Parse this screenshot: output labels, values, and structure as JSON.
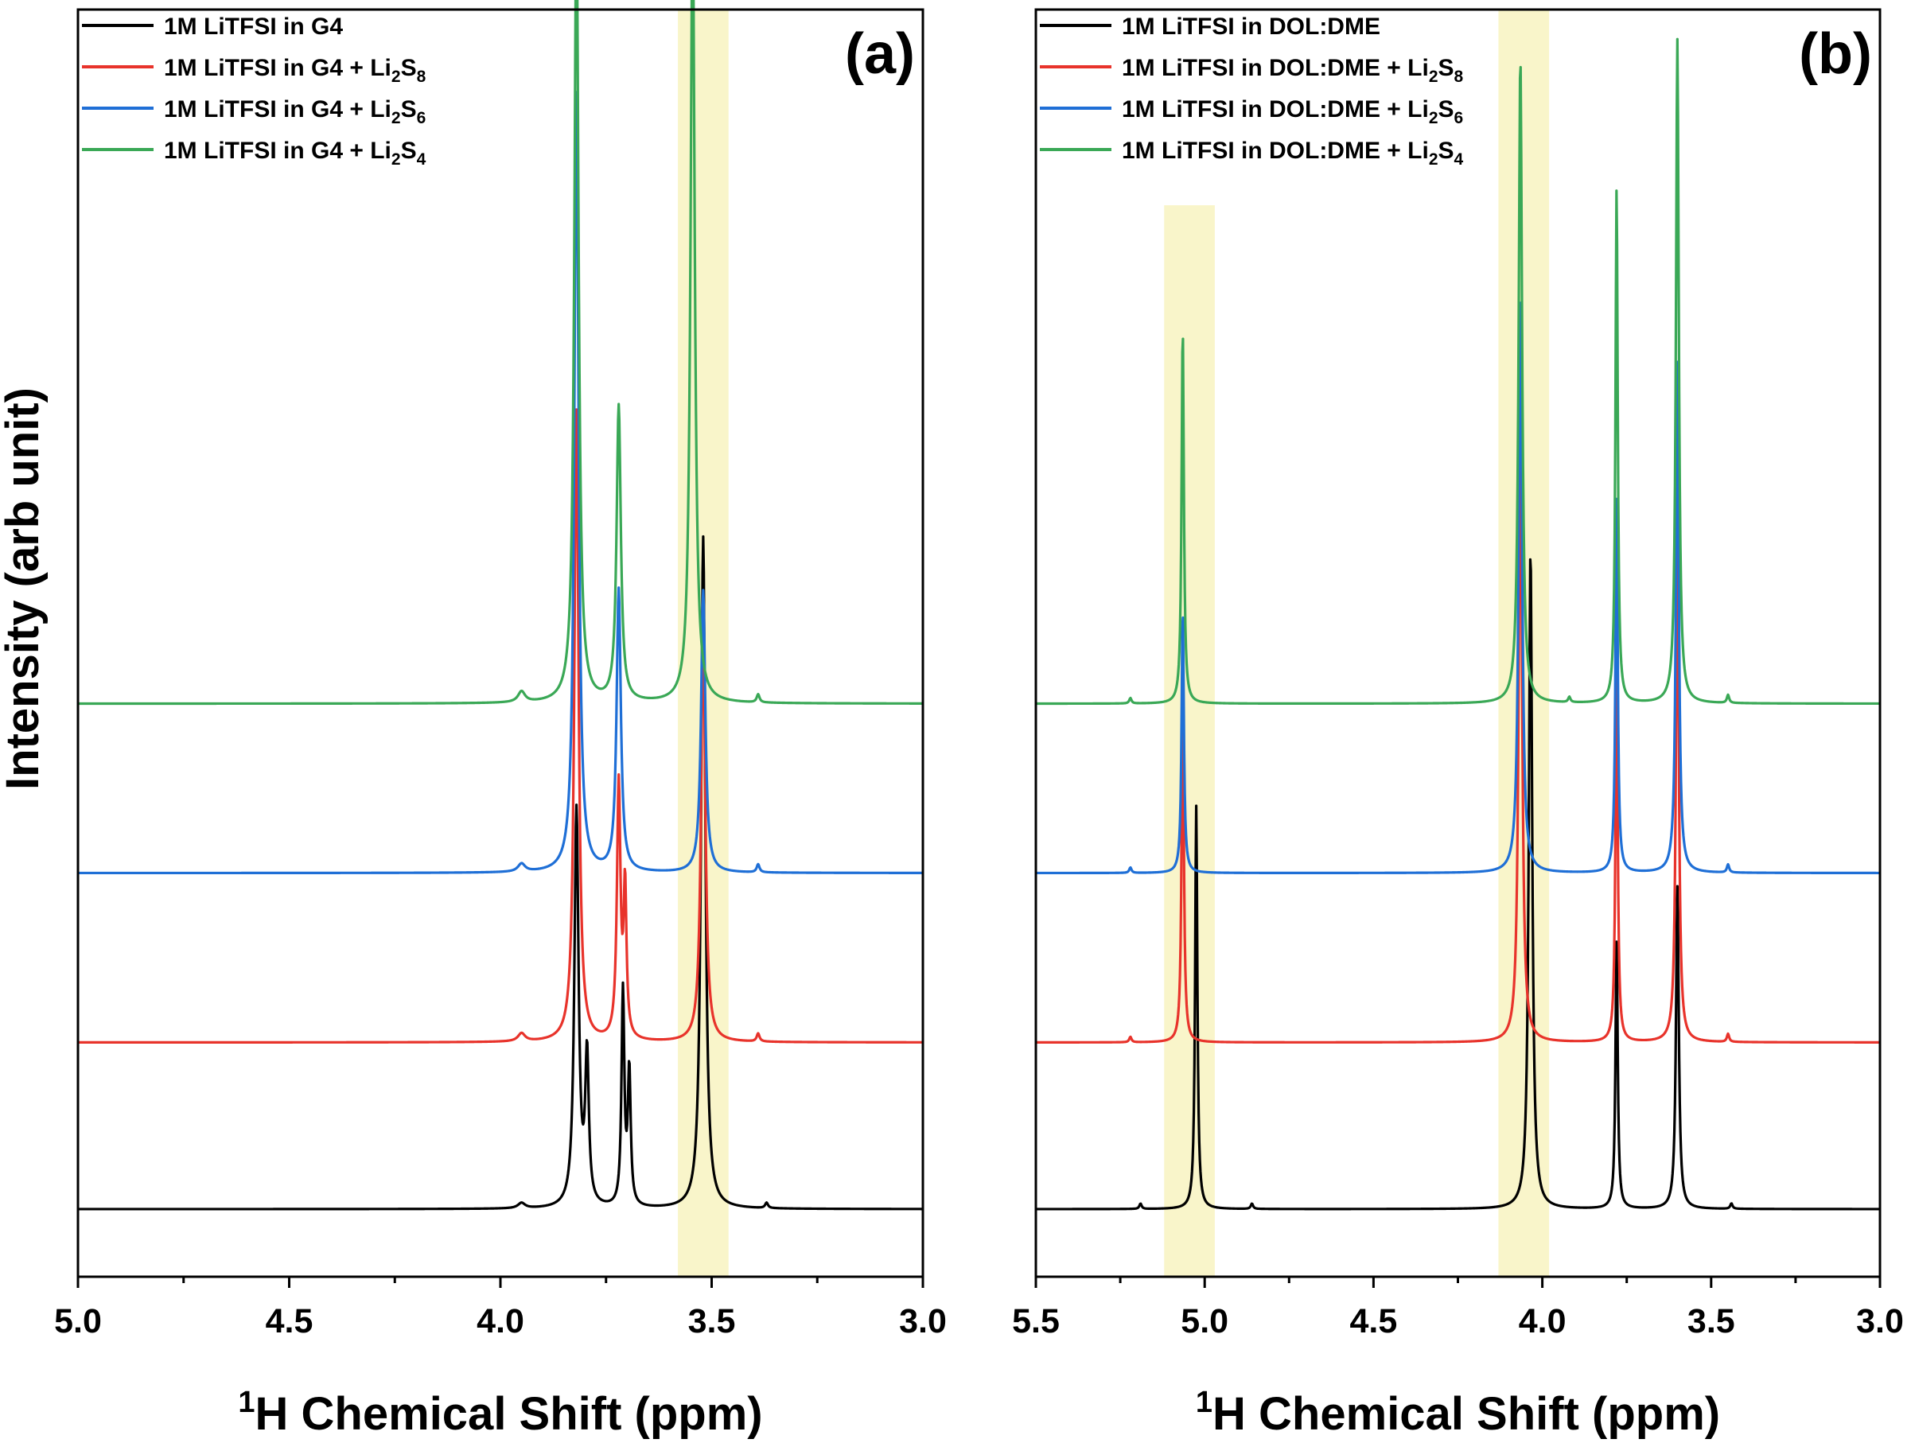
{
  "figure": {
    "ylabel": "Intensity (arb unit)"
  },
  "chart_data": [
    {
      "type": "line",
      "panel_label": "(a)",
      "xlabel_sup": "1",
      "xlabel_main": "H Chemical Shift (ppm)",
      "xlim": [
        5.0,
        3.0
      ],
      "x_reversed": true,
      "xticks": [
        "5.0",
        "4.5",
        "4.0",
        "3.5",
        "3.0"
      ],
      "tick_values": [
        5.0,
        4.5,
        4.0,
        3.5,
        3.0
      ],
      "minor_tick_values": [
        4.75,
        4.25,
        3.75,
        3.25
      ],
      "highlight_bands": [
        [
          3.58,
          3.46
        ]
      ],
      "legend_position": "top-left",
      "series": [
        {
          "name": "1M LiTFSI in G4",
          "sub": "",
          "color": "#000000",
          "offset": 0,
          "peaks": [
            [
              3.82,
              1.48,
              0.006
            ],
            [
              3.795,
              0.55,
              0.005
            ],
            [
              3.71,
              0.8,
              0.004
            ],
            [
              3.695,
              0.5,
              0.004
            ],
            [
              3.52,
              2.5,
              0.006
            ],
            [
              3.95,
              0.02,
              0.01
            ],
            [
              3.37,
              0.02,
              0.004
            ]
          ]
        },
        {
          "name": "1M LiTFSI in G4 + Li",
          "sub": "2",
          "name2": "S",
          "sub2": "8",
          "color": "#e8332b",
          "offset": 0.62,
          "peaks": [
            [
              3.82,
              2.35,
              0.006
            ],
            [
              3.72,
              0.95,
              0.005
            ],
            [
              3.705,
              0.55,
              0.004
            ],
            [
              3.52,
              1.55,
              0.006
            ],
            [
              3.95,
              0.03,
              0.01
            ],
            [
              3.39,
              0.03,
              0.004
            ]
          ]
        },
        {
          "name": "1M LiTFSI in G4 + Li",
          "sub": "2",
          "name2": "S",
          "sub2": "6",
          "color": "#1f6fd6",
          "offset": 1.25,
          "peaks": [
            [
              3.82,
              2.9,
              0.006
            ],
            [
              3.72,
              1.05,
              0.006
            ],
            [
              3.52,
              1.05,
              0.006
            ],
            [
              3.95,
              0.03,
              0.01
            ],
            [
              3.39,
              0.03,
              0.004
            ]
          ]
        },
        {
          "name": "1M LiTFSI in G4 + Li",
          "sub": "2",
          "name2": "S",
          "sub2": "4",
          "color": "#3aa856",
          "offset": 1.88,
          "peaks": [
            [
              3.82,
              2.95,
              0.006
            ],
            [
              3.72,
              1.1,
              0.006
            ],
            [
              3.545,
              2.95,
              0.006
            ],
            [
              3.95,
              0.04,
              0.01
            ],
            [
              3.39,
              0.03,
              0.004
            ]
          ]
        }
      ]
    },
    {
      "type": "line",
      "panel_label": "(b)",
      "xlabel_sup": "1",
      "xlabel_main": "H Chemical Shift (ppm)",
      "xlim": [
        5.5,
        3.0
      ],
      "x_reversed": true,
      "xticks": [
        "5.5",
        "5.0",
        "4.5",
        "4.0",
        "3.5",
        "3.0"
      ],
      "tick_values": [
        5.5,
        5.0,
        4.5,
        4.0,
        3.5,
        3.0
      ],
      "minor_tick_values": [
        5.25,
        4.75,
        4.25,
        3.75,
        3.25
      ],
      "highlight_bands": [
        [
          5.12,
          4.97
        ],
        [
          4.13,
          3.98
        ]
      ],
      "legend_position": "top-left",
      "series": [
        {
          "name": "1M LiTFSI in DOL:DME",
          "sub": "",
          "color": "#000000",
          "offset": 0,
          "peaks": [
            [
              5.025,
              1.5,
              0.004
            ],
            [
              4.035,
              2.45,
              0.006
            ],
            [
              3.78,
              1.0,
              0.004
            ],
            [
              3.6,
              1.2,
              0.005
            ],
            [
              5.19,
              0.02,
              0.004
            ],
            [
              4.86,
              0.02,
              0.004
            ],
            [
              3.44,
              0.02,
              0.004
            ]
          ]
        },
        {
          "name": "1M LiTFSI in DOL:DME + Li",
          "sub": "2",
          "name2": "S",
          "sub2": "8",
          "color": "#e8332b",
          "offset": 0.62,
          "peaks": [
            [
              5.065,
              1.3,
              0.004
            ],
            [
              4.065,
              2.3,
              0.006
            ],
            [
              3.78,
              1.4,
              0.004
            ],
            [
              3.6,
              1.9,
              0.005
            ],
            [
              5.22,
              0.02,
              0.004
            ],
            [
              3.45,
              0.03,
              0.004
            ]
          ]
        },
        {
          "name": "1M LiTFSI in DOL:DME + Li",
          "sub": "2",
          "name2": "S",
          "sub2": "6",
          "color": "#1f6fd6",
          "offset": 1.25,
          "peaks": [
            [
              5.065,
              0.98,
              0.004
            ],
            [
              4.065,
              2.15,
              0.006
            ],
            [
              3.78,
              1.4,
              0.004
            ],
            [
              3.6,
              1.9,
              0.005
            ],
            [
              5.22,
              0.02,
              0.004
            ],
            [
              3.45,
              0.03,
              0.004
            ]
          ]
        },
        {
          "name": "1M LiTFSI in DOL:DME + Li",
          "sub": "2",
          "name2": "S",
          "sub2": "4",
          "color": "#3aa856",
          "offset": 1.88,
          "peaks": [
            [
              5.065,
              1.4,
              0.004
            ],
            [
              4.065,
              2.4,
              0.006
            ],
            [
              3.78,
              1.92,
              0.004
            ],
            [
              3.6,
              2.47,
              0.005
            ],
            [
              5.22,
              0.02,
              0.004
            ],
            [
              3.92,
              0.02,
              0.004
            ],
            [
              3.45,
              0.03,
              0.004
            ]
          ]
        }
      ]
    }
  ]
}
